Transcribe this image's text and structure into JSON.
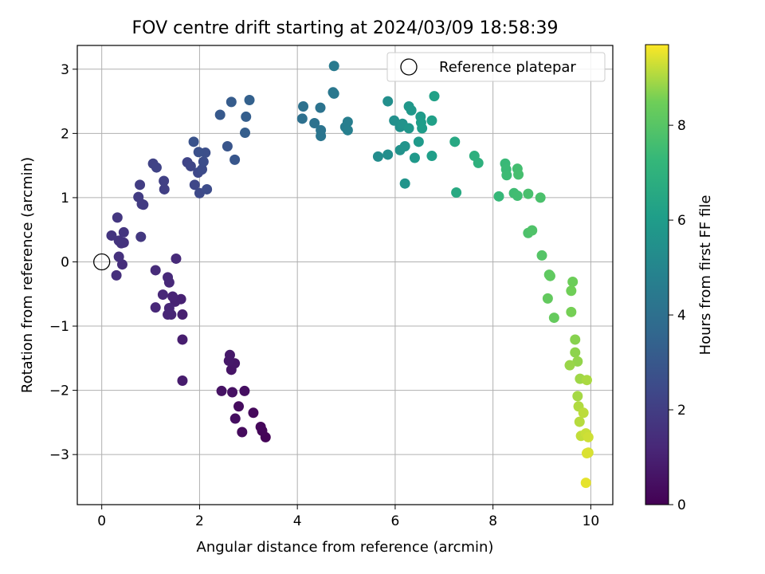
{
  "chart_data": {
    "type": "scatter",
    "title": "FOV centre drift starting at 2024/03/09 18:58:39",
    "xlabel": "Angular distance from reference (arcmin)",
    "ylabel": "Rotation from reference (arcmin)",
    "xlim": [
      -0.5,
      10.45
    ],
    "ylim": [
      -3.78,
      3.37
    ],
    "xticks": [
      0,
      2,
      4,
      6,
      8,
      10
    ],
    "yticks": [
      -3,
      -2,
      -1,
      0,
      1,
      2,
      3
    ],
    "grid": true,
    "legend": {
      "placement": "top-right",
      "entries": [
        "Reference platepar"
      ]
    },
    "reference_point": {
      "x": 0,
      "y": 0
    },
    "colorbar": {
      "label": "Hours from first FF file",
      "colormap": "viridis",
      "range": [
        0,
        9.7
      ],
      "ticks": [
        0,
        2,
        4,
        6,
        8
      ]
    },
    "points": [
      [
        3.35,
        -2.73,
        0.1
      ],
      [
        3.28,
        -2.63,
        0.15
      ],
      [
        3.25,
        -2.57,
        0.2
      ],
      [
        3.1,
        -2.35,
        0.25
      ],
      [
        2.87,
        -2.65,
        0.3
      ],
      [
        2.8,
        -2.25,
        0.35
      ],
      [
        2.73,
        -2.44,
        0.4
      ],
      [
        2.92,
        -2.01,
        0.45
      ],
      [
        2.67,
        -2.03,
        0.5
      ],
      [
        2.45,
        -2.01,
        0.55
      ],
      [
        2.65,
        -1.68,
        0.6
      ],
      [
        2.72,
        -1.58,
        0.65
      ],
      [
        2.6,
        -1.54,
        0.7
      ],
      [
        2.62,
        -1.45,
        0.75
      ],
      [
        1.65,
        -1.85,
        0.85
      ],
      [
        1.65,
        -1.21,
        0.9
      ],
      [
        1.65,
        -0.82,
        0.95
      ],
      [
        1.62,
        -0.58,
        1.0
      ],
      [
        1.5,
        -0.62,
        1.05
      ],
      [
        1.45,
        -0.54,
        1.1
      ],
      [
        1.42,
        -0.82,
        1.12
      ],
      [
        1.35,
        -0.82,
        1.15
      ],
      [
        1.38,
        -0.72,
        1.18
      ],
      [
        1.25,
        -0.51,
        1.2
      ],
      [
        1.1,
        -0.71,
        1.22
      ],
      [
        1.38,
        -0.32,
        1.25
      ],
      [
        1.35,
        -0.24,
        1.28
      ],
      [
        1.52,
        0.05,
        1.3
      ],
      [
        1.1,
        -0.13,
        1.35
      ],
      [
        0.42,
        -0.04,
        1.45
      ],
      [
        0.3,
        -0.21,
        1.5
      ],
      [
        0.35,
        0.08,
        1.55
      ],
      [
        0.4,
        0.29,
        1.6
      ],
      [
        0.45,
        0.3,
        1.62
      ],
      [
        0.35,
        0.33,
        1.65
      ],
      [
        0.45,
        0.46,
        1.68
      ],
      [
        0.2,
        0.41,
        1.7
      ],
      [
        0.32,
        0.69,
        1.75
      ],
      [
        0.8,
        0.39,
        1.8
      ],
      [
        0.85,
        0.89,
        1.9
      ],
      [
        0.82,
        0.9,
        1.92
      ],
      [
        0.75,
        1.01,
        1.95
      ],
      [
        0.78,
        1.2,
        2.0
      ],
      [
        1.28,
        1.13,
        2.05
      ],
      [
        1.27,
        1.26,
        2.1
      ],
      [
        1.05,
        1.53,
        2.15
      ],
      [
        1.12,
        1.47,
        2.2
      ],
      [
        1.75,
        1.55,
        2.25
      ],
      [
        1.82,
        1.49,
        2.3
      ],
      [
        1.9,
        1.2,
        2.35
      ],
      [
        1.97,
        1.39,
        2.4
      ],
      [
        2.0,
        1.07,
        2.45
      ],
      [
        2.05,
        1.44,
        2.5
      ],
      [
        2.15,
        1.13,
        2.55
      ],
      [
        2.08,
        1.56,
        2.6
      ],
      [
        2.12,
        1.7,
        2.65
      ],
      [
        1.98,
        1.71,
        2.7
      ],
      [
        1.88,
        1.87,
        2.8
      ],
      [
        2.57,
        1.8,
        2.9
      ],
      [
        2.72,
        1.59,
        2.95
      ],
      [
        2.42,
        2.29,
        3.05
      ],
      [
        2.65,
        2.49,
        3.15
      ],
      [
        2.93,
        2.01,
        3.25
      ],
      [
        2.95,
        2.26,
        3.3
      ],
      [
        3.02,
        2.52,
        3.35
      ],
      [
        4.1,
        2.23,
        4.0
      ],
      [
        4.12,
        2.42,
        4.05
      ],
      [
        4.35,
        2.16,
        4.1
      ],
      [
        4.47,
        2.4,
        4.15
      ],
      [
        4.48,
        2.05,
        4.2
      ],
      [
        4.48,
        1.96,
        4.25
      ],
      [
        4.73,
        2.64,
        4.35
      ],
      [
        4.75,
        2.62,
        4.4
      ],
      [
        4.75,
        3.05,
        4.5
      ],
      [
        4.98,
        2.1,
        4.6
      ],
      [
        5.03,
        2.18,
        4.65
      ],
      [
        5.03,
        2.05,
        4.7
      ],
      [
        5.65,
        1.64,
        5.3
      ],
      [
        5.85,
        1.67,
        5.35
      ],
      [
        5.85,
        2.5,
        5.4
      ],
      [
        5.98,
        2.2,
        5.45
      ],
      [
        6.1,
        2.1,
        5.5
      ],
      [
        6.1,
        1.74,
        5.55
      ],
      [
        6.15,
        2.15,
        5.6
      ],
      [
        6.2,
        1.8,
        5.62
      ],
      [
        6.2,
        1.22,
        5.65
      ],
      [
        6.28,
        2.08,
        5.7
      ],
      [
        6.28,
        2.42,
        5.75
      ],
      [
        6.33,
        2.36,
        5.8
      ],
      [
        6.4,
        1.62,
        5.85
      ],
      [
        6.48,
        1.87,
        5.9
      ],
      [
        6.52,
        2.26,
        5.95
      ],
      [
        6.55,
        2.08,
        6.0
      ],
      [
        6.53,
        2.17,
        6.05
      ],
      [
        6.75,
        1.65,
        6.1
      ],
      [
        6.75,
        2.2,
        6.15
      ],
      [
        6.8,
        2.58,
        6.2
      ],
      [
        7.22,
        1.87,
        6.55
      ],
      [
        7.25,
        1.08,
        6.6
      ],
      [
        7.62,
        1.65,
        6.9
      ],
      [
        7.7,
        1.54,
        6.95
      ],
      [
        8.12,
        1.02,
        7.3
      ],
      [
        8.25,
        1.53,
        7.35
      ],
      [
        8.27,
        1.44,
        7.4
      ],
      [
        8.28,
        1.35,
        7.45
      ],
      [
        8.43,
        1.07,
        7.5
      ],
      [
        8.5,
        1.03,
        7.55
      ],
      [
        8.5,
        1.45,
        7.6
      ],
      [
        8.52,
        1.36,
        7.65
      ],
      [
        8.72,
        1.06,
        7.7
      ],
      [
        8.97,
        1.0,
        7.75
      ],
      [
        8.72,
        0.45,
        7.8
      ],
      [
        8.8,
        0.49,
        7.85
      ],
      [
        9.0,
        0.1,
        7.95
      ],
      [
        9.15,
        -0.2,
        8.15
      ],
      [
        9.17,
        -0.22,
        8.2
      ],
      [
        9.12,
        -0.57,
        8.25
      ],
      [
        9.25,
        -0.87,
        8.3
      ],
      [
        9.63,
        -0.31,
        8.45
      ],
      [
        9.6,
        -0.45,
        8.5
      ],
      [
        9.6,
        -0.78,
        8.55
      ],
      [
        9.68,
        -1.21,
        8.7
      ],
      [
        9.68,
        -1.41,
        8.75
      ],
      [
        9.73,
        -1.55,
        8.8
      ],
      [
        9.57,
        -1.61,
        8.85
      ],
      [
        9.78,
        -1.82,
        8.9
      ],
      [
        9.73,
        -2.09,
        8.95
      ],
      [
        9.92,
        -1.84,
        9.0
      ],
      [
        9.75,
        -2.25,
        9.05
      ],
      [
        9.77,
        -2.49,
        9.1
      ],
      [
        9.85,
        -2.35,
        9.15
      ],
      [
        9.8,
        -2.71,
        9.2
      ],
      [
        9.9,
        -2.67,
        9.25
      ],
      [
        9.95,
        -2.73,
        9.3
      ],
      [
        9.95,
        -2.97,
        9.35
      ],
      [
        9.92,
        -2.98,
        9.4
      ],
      [
        9.9,
        -3.44,
        9.5
      ]
    ]
  }
}
